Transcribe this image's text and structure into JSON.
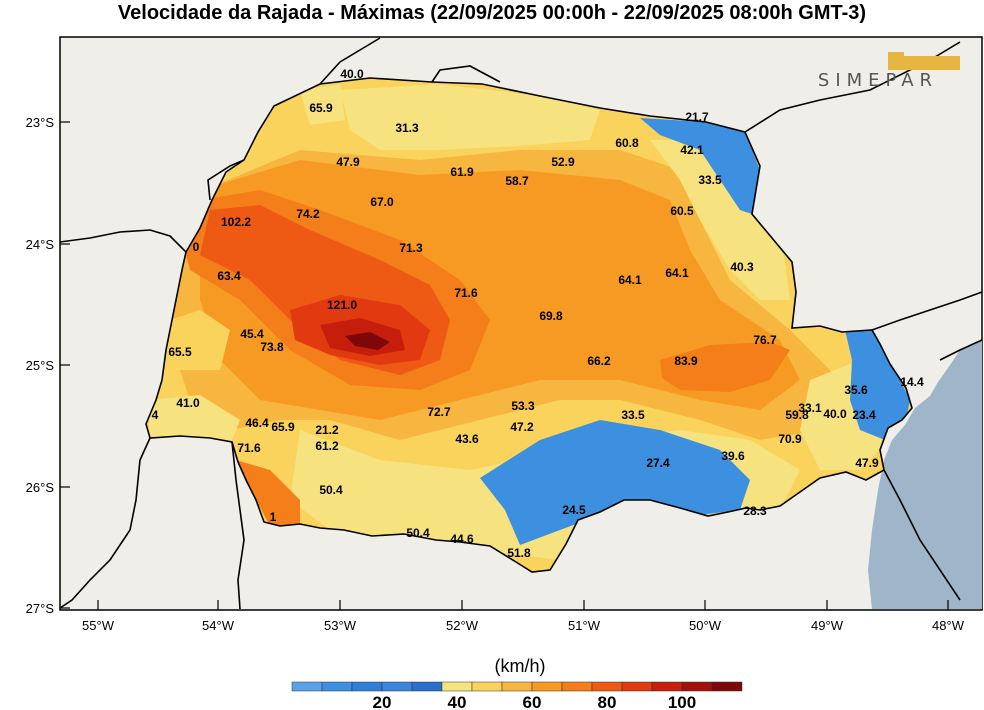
{
  "title": "Velocidade da Rajada - Máximas (22/09/2025 00:00h - 22/09/2025 08:00h GMT-3)",
  "logo_text": "SIMEPAR",
  "latitude_ticks": [
    "23°S",
    "24°S",
    "25°S",
    "26°S",
    "27°S"
  ],
  "longitude_ticks": [
    "55°W",
    "54°W",
    "53°W",
    "52°W",
    "51°W",
    "50°W",
    "49°W",
    "48°W"
  ],
  "colorbar": {
    "unit": "(km/h)",
    "tick_labels": [
      "20",
      "40",
      "60",
      "80",
      "100"
    ],
    "colors": [
      "#5aa2e6",
      "#3d8fe0",
      "#2f7fd8",
      "#3a86dc",
      "#2b6fce",
      "#f6e27f",
      "#f9d35c",
      "#f7b63f",
      "#f79a24",
      "#f37e1a",
      "#ee5a14",
      "#e23a10",
      "#c61e0c",
      "#a3100a",
      "#7e0808"
    ]
  },
  "stations": [
    {
      "value": "40.0"
    },
    {
      "value": "65.9"
    },
    {
      "value": "31.3"
    },
    {
      "value": "21.7"
    },
    {
      "value": "60.8"
    },
    {
      "value": "42.1"
    },
    {
      "value": "47.9"
    },
    {
      "value": "61.9"
    },
    {
      "value": "52.9"
    },
    {
      "value": "58.7"
    },
    {
      "value": "33.5"
    },
    {
      "value": "67.0"
    },
    {
      "value": "74.2"
    },
    {
      "value": "60.5"
    },
    {
      "value": "102.2"
    },
    {
      "value": "71.3"
    },
    {
      "value": "40.3"
    },
    {
      "value": "63.4"
    },
    {
      "value": "64.1"
    },
    {
      "value": "64.1"
    },
    {
      "value": "121.0"
    },
    {
      "value": "71.6"
    },
    {
      "value": "69.8"
    },
    {
      "value": "45.4"
    },
    {
      "value": "73.8"
    },
    {
      "value": "76.7"
    },
    {
      "value": "65.5"
    },
    {
      "value": "66.2"
    },
    {
      "value": "83.9"
    },
    {
      "value": "35.6"
    },
    {
      "value": "14.4"
    },
    {
      "value": "41.0"
    },
    {
      "value": "53.3"
    },
    {
      "value": "33.1"
    },
    {
      "value": "72.7"
    },
    {
      "value": "33.5"
    },
    {
      "value": "59.8"
    },
    {
      "value": "40.0"
    },
    {
      "value": "23.4"
    },
    {
      "value": "46.4"
    },
    {
      "value": "65.9"
    },
    {
      "value": "21.2"
    },
    {
      "value": "47.2"
    },
    {
      "value": "43.6"
    },
    {
      "value": "70.9"
    },
    {
      "value": "61.2"
    },
    {
      "value": "71.6"
    },
    {
      "value": "39.6"
    },
    {
      "value": "27.4"
    },
    {
      "value": "47.9"
    },
    {
      "value": "50.4"
    },
    {
      "value": "24.5"
    },
    {
      "value": "50.4"
    },
    {
      "value": "44.6"
    },
    {
      "value": "51.8"
    },
    {
      "value": "4"
    },
    {
      "value": "1"
    },
    {
      "value": "0"
    },
    {
      "value": "28.3"
    }
  ]
}
